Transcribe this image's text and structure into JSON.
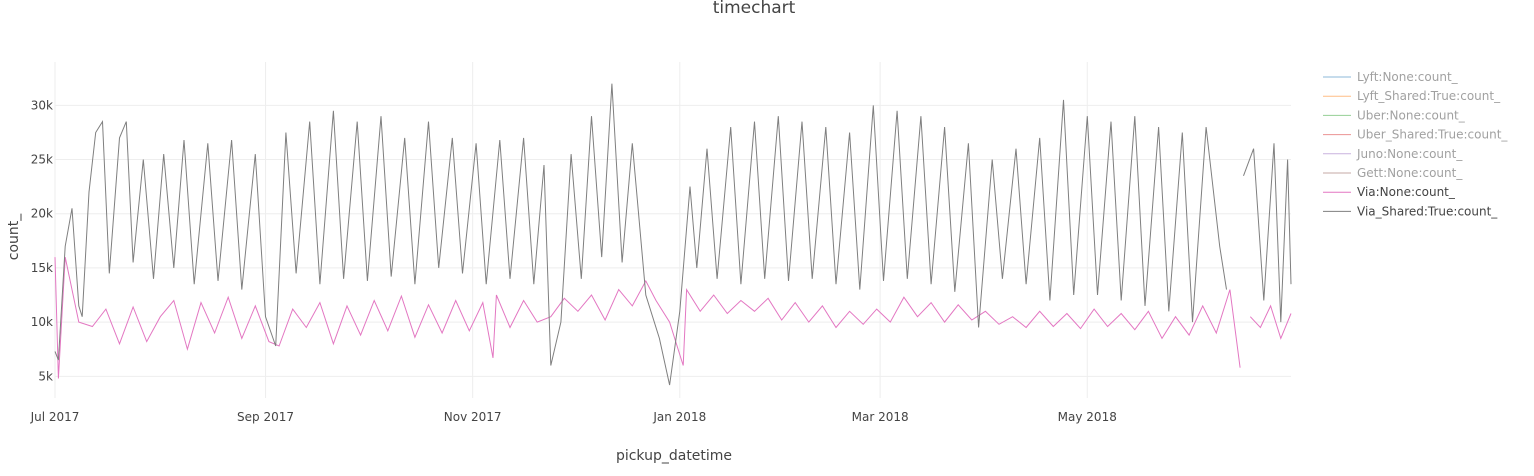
{
  "chart_data": {
    "type": "line",
    "title": "timechart",
    "xlabel": "pickup_datetime",
    "ylabel": "count_",
    "x_range": [
      "2017-07-01",
      "2018-06-30"
    ],
    "ylim": [
      3000,
      34000
    ],
    "grid": true,
    "legend_position": "right",
    "x_ticks": [
      {
        "date": "2017-07-01",
        "label": "Jul 2017"
      },
      {
        "date": "2017-09-01",
        "label": "Sep 2017"
      },
      {
        "date": "2017-11-01",
        "label": "Nov 2017"
      },
      {
        "date": "2018-01-01",
        "label": "Jan 2018"
      },
      {
        "date": "2018-03-01",
        "label": "Mar 2018"
      },
      {
        "date": "2018-05-01",
        "label": "May 2018"
      }
    ],
    "y_ticks": [
      {
        "value": 5000,
        "label": "5k"
      },
      {
        "value": 10000,
        "label": "10k"
      },
      {
        "value": 15000,
        "label": "15k"
      },
      {
        "value": 20000,
        "label": "20k"
      },
      {
        "value": 25000,
        "label": "25k"
      },
      {
        "value": 30000,
        "label": "30k"
      }
    ],
    "series": [
      {
        "name": "Lyft:None:count_",
        "color": "#1f77b4",
        "visible": false,
        "values": []
      },
      {
        "name": "Lyft_Shared:True:count_",
        "color": "#ff7f0e",
        "visible": false,
        "values": []
      },
      {
        "name": "Uber:None:count_",
        "color": "#2ca02c",
        "visible": false,
        "values": []
      },
      {
        "name": "Uber_Shared:True:count_",
        "color": "#d62728",
        "visible": false,
        "values": []
      },
      {
        "name": "Juno:None:count_",
        "color": "#9467bd",
        "visible": false,
        "values": []
      },
      {
        "name": "Gett:None:count_",
        "color": "#8c564b",
        "visible": false,
        "values": []
      },
      {
        "name": "Via:None:count_",
        "color": "#e377c2",
        "visible": true,
        "values": [
          [
            "2017-07-01",
            16000
          ],
          [
            "2017-07-02",
            4800
          ],
          [
            "2017-07-04",
            16000
          ],
          [
            "2017-07-08",
            10000
          ],
          [
            "2017-07-12",
            9600
          ],
          [
            "2017-07-16",
            11200
          ],
          [
            "2017-07-20",
            8000
          ],
          [
            "2017-07-24",
            11400
          ],
          [
            "2017-07-28",
            8200
          ],
          [
            "2017-08-01",
            10500
          ],
          [
            "2017-08-05",
            12000
          ],
          [
            "2017-08-09",
            7500
          ],
          [
            "2017-08-13",
            11800
          ],
          [
            "2017-08-17",
            9000
          ],
          [
            "2017-08-21",
            12300
          ],
          [
            "2017-08-25",
            8500
          ],
          [
            "2017-08-29",
            11500
          ],
          [
            "2017-09-02",
            8200
          ],
          [
            "2017-09-05",
            7800
          ],
          [
            "2017-09-09",
            11200
          ],
          [
            "2017-09-13",
            9500
          ],
          [
            "2017-09-17",
            11800
          ],
          [
            "2017-09-21",
            8000
          ],
          [
            "2017-09-25",
            11500
          ],
          [
            "2017-09-29",
            8800
          ],
          [
            "2017-10-03",
            12000
          ],
          [
            "2017-10-07",
            9200
          ],
          [
            "2017-10-11",
            12400
          ],
          [
            "2017-10-15",
            8600
          ],
          [
            "2017-10-19",
            11600
          ],
          [
            "2017-10-23",
            9000
          ],
          [
            "2017-10-27",
            12000
          ],
          [
            "2017-10-31",
            9200
          ],
          [
            "2017-11-04",
            11800
          ],
          [
            "2017-11-07",
            6700
          ],
          [
            "2017-11-08",
            12500
          ],
          [
            "2017-11-12",
            9500
          ],
          [
            "2017-11-16",
            12000
          ],
          [
            "2017-11-20",
            10000
          ],
          [
            "2017-11-24",
            10500
          ],
          [
            "2017-11-28",
            12200
          ],
          [
            "2017-12-02",
            11000
          ],
          [
            "2017-12-06",
            12500
          ],
          [
            "2017-12-10",
            10200
          ],
          [
            "2017-12-14",
            13000
          ],
          [
            "2017-12-18",
            11500
          ],
          [
            "2017-12-22",
            13800
          ],
          [
            "2017-12-25",
            12000
          ],
          [
            "2017-12-29",
            10000
          ],
          [
            "2018-01-02",
            6000
          ],
          [
            "2018-01-03",
            13000
          ],
          [
            "2018-01-07",
            11000
          ],
          [
            "2018-01-11",
            12500
          ],
          [
            "2018-01-15",
            10800
          ],
          [
            "2018-01-19",
            12000
          ],
          [
            "2018-01-23",
            11000
          ],
          [
            "2018-01-27",
            12200
          ],
          [
            "2018-01-31",
            10200
          ],
          [
            "2018-02-04",
            11800
          ],
          [
            "2018-02-08",
            10000
          ],
          [
            "2018-02-12",
            11500
          ],
          [
            "2018-02-16",
            9500
          ],
          [
            "2018-02-20",
            11000
          ],
          [
            "2018-02-24",
            9800
          ],
          [
            "2018-02-28",
            11200
          ],
          [
            "2018-03-04",
            10000
          ],
          [
            "2018-03-08",
            12300
          ],
          [
            "2018-03-12",
            10500
          ],
          [
            "2018-03-16",
            11800
          ],
          [
            "2018-03-20",
            10000
          ],
          [
            "2018-03-24",
            11600
          ],
          [
            "2018-03-28",
            10200
          ],
          [
            "2018-04-01",
            11000
          ],
          [
            "2018-04-05",
            9800
          ],
          [
            "2018-04-09",
            10500
          ],
          [
            "2018-04-13",
            9500
          ],
          [
            "2018-04-17",
            11000
          ],
          [
            "2018-04-21",
            9600
          ],
          [
            "2018-04-25",
            10800
          ],
          [
            "2018-04-29",
            9400
          ],
          [
            "2018-05-03",
            11200
          ],
          [
            "2018-05-07",
            9600
          ],
          [
            "2018-05-11",
            10800
          ],
          [
            "2018-05-15",
            9300
          ],
          [
            "2018-05-19",
            11000
          ],
          [
            "2018-05-23",
            8500
          ],
          [
            "2018-05-27",
            10500
          ],
          [
            "2018-05-31",
            8800
          ],
          [
            "2018-06-04",
            11500
          ],
          [
            "2018-06-08",
            9000
          ],
          [
            "2018-06-12",
            13000
          ],
          [
            "2018-06-15",
            5800
          ],
          null,
          [
            "2018-06-18",
            10500
          ],
          [
            "2018-06-21",
            9500
          ],
          [
            "2018-06-24",
            11500
          ],
          [
            "2018-06-27",
            8500
          ],
          [
            "2018-06-30",
            10800
          ]
        ]
      },
      {
        "name": "Via_Shared:True:count_",
        "color": "#7f7f7f",
        "visible": true,
        "values": [
          [
            "2017-07-01",
            7300
          ],
          [
            "2017-07-02",
            6500
          ],
          [
            "2017-07-04",
            17000
          ],
          [
            "2017-07-06",
            20500
          ],
          [
            "2017-07-08",
            11500
          ],
          [
            "2017-07-09",
            10500
          ],
          [
            "2017-07-11",
            22000
          ],
          [
            "2017-07-13",
            27500
          ],
          [
            "2017-07-15",
            28500
          ],
          [
            "2017-07-17",
            14500
          ],
          [
            "2017-07-20",
            27000
          ],
          [
            "2017-07-22",
            28500
          ],
          [
            "2017-07-24",
            15500
          ],
          [
            "2017-07-27",
            25000
          ],
          [
            "2017-07-30",
            14000
          ],
          [
            "2017-08-02",
            25500
          ],
          [
            "2017-08-05",
            15000
          ],
          [
            "2017-08-08",
            26800
          ],
          [
            "2017-08-11",
            13500
          ],
          [
            "2017-08-15",
            26500
          ],
          [
            "2017-08-18",
            13800
          ],
          [
            "2017-08-22",
            26800
          ],
          [
            "2017-08-25",
            13000
          ],
          [
            "2017-08-29",
            25500
          ],
          [
            "2017-09-01",
            10500
          ],
          [
            "2017-09-04",
            7800
          ],
          [
            "2017-09-07",
            27500
          ],
          [
            "2017-09-10",
            14500
          ],
          [
            "2017-09-14",
            28500
          ],
          [
            "2017-09-17",
            13500
          ],
          [
            "2017-09-21",
            29500
          ],
          [
            "2017-09-24",
            14000
          ],
          [
            "2017-09-28",
            28500
          ],
          [
            "2017-10-01",
            13800
          ],
          [
            "2017-10-05",
            29000
          ],
          [
            "2017-10-08",
            14200
          ],
          [
            "2017-10-12",
            27000
          ],
          [
            "2017-10-15",
            13500
          ],
          [
            "2017-10-19",
            28500
          ],
          [
            "2017-10-22",
            15000
          ],
          [
            "2017-10-26",
            27000
          ],
          [
            "2017-10-29",
            14500
          ],
          [
            "2017-11-02",
            26500
          ],
          [
            "2017-11-05",
            13500
          ],
          [
            "2017-11-09",
            26800
          ],
          [
            "2017-11-12",
            14000
          ],
          [
            "2017-11-16",
            27000
          ],
          [
            "2017-11-19",
            13500
          ],
          [
            "2017-11-22",
            24500
          ],
          [
            "2017-11-24",
            6000
          ],
          [
            "2017-11-27",
            10000
          ],
          [
            "2017-11-30",
            25500
          ],
          [
            "2017-12-03",
            14000
          ],
          [
            "2017-12-06",
            29000
          ],
          [
            "2017-12-09",
            16000
          ],
          [
            "2017-12-12",
            32000
          ],
          [
            "2017-12-15",
            15500
          ],
          [
            "2017-12-18",
            26500
          ],
          [
            "2017-12-22",
            12500
          ],
          [
            "2017-12-26",
            8500
          ],
          [
            "2017-12-29",
            4200
          ],
          [
            "2018-01-01",
            11000
          ],
          [
            "2018-01-04",
            22500
          ],
          [
            "2018-01-06",
            15000
          ],
          [
            "2018-01-09",
            26000
          ],
          [
            "2018-01-12",
            14000
          ],
          [
            "2018-01-16",
            28000
          ],
          [
            "2018-01-19",
            13500
          ],
          [
            "2018-01-23",
            28500
          ],
          [
            "2018-01-26",
            14000
          ],
          [
            "2018-01-30",
            29000
          ],
          [
            "2018-02-02",
            13800
          ],
          [
            "2018-02-06",
            28500
          ],
          [
            "2018-02-09",
            14000
          ],
          [
            "2018-02-13",
            28000
          ],
          [
            "2018-02-16",
            13500
          ],
          [
            "2018-02-20",
            27500
          ],
          [
            "2018-02-23",
            13000
          ],
          [
            "2018-02-27",
            30000
          ],
          [
            "2018-03-02",
            13800
          ],
          [
            "2018-03-06",
            29500
          ],
          [
            "2018-03-09",
            14000
          ],
          [
            "2018-03-13",
            29000
          ],
          [
            "2018-03-16",
            13500
          ],
          [
            "2018-03-20",
            28000
          ],
          [
            "2018-03-23",
            12800
          ],
          [
            "2018-03-27",
            26500
          ],
          [
            "2018-03-30",
            9500
          ],
          [
            "2018-04-03",
            25000
          ],
          [
            "2018-04-06",
            14000
          ],
          [
            "2018-04-10",
            26000
          ],
          [
            "2018-04-13",
            13500
          ],
          [
            "2018-04-17",
            27000
          ],
          [
            "2018-04-20",
            12000
          ],
          [
            "2018-04-24",
            30500
          ],
          [
            "2018-04-27",
            12500
          ],
          [
            "2018-05-01",
            29000
          ],
          [
            "2018-05-04",
            12500
          ],
          [
            "2018-05-08",
            28500
          ],
          [
            "2018-05-11",
            12000
          ],
          [
            "2018-05-15",
            29000
          ],
          [
            "2018-05-18",
            11500
          ],
          [
            "2018-05-22",
            28000
          ],
          [
            "2018-05-25",
            11000
          ],
          [
            "2018-05-29",
            27500
          ],
          [
            "2018-06-01",
            10000
          ],
          [
            "2018-06-05",
            28000
          ],
          [
            "2018-06-09",
            17000
          ],
          [
            "2018-06-11",
            13000
          ],
          null,
          [
            "2018-06-16",
            23500
          ],
          [
            "2018-06-19",
            26000
          ],
          [
            "2018-06-22",
            12000
          ],
          [
            "2018-06-25",
            26500
          ],
          [
            "2018-06-27",
            10000
          ],
          [
            "2018-06-29",
            25000
          ],
          [
            "2018-06-30",
            13500
          ]
        ]
      }
    ]
  }
}
